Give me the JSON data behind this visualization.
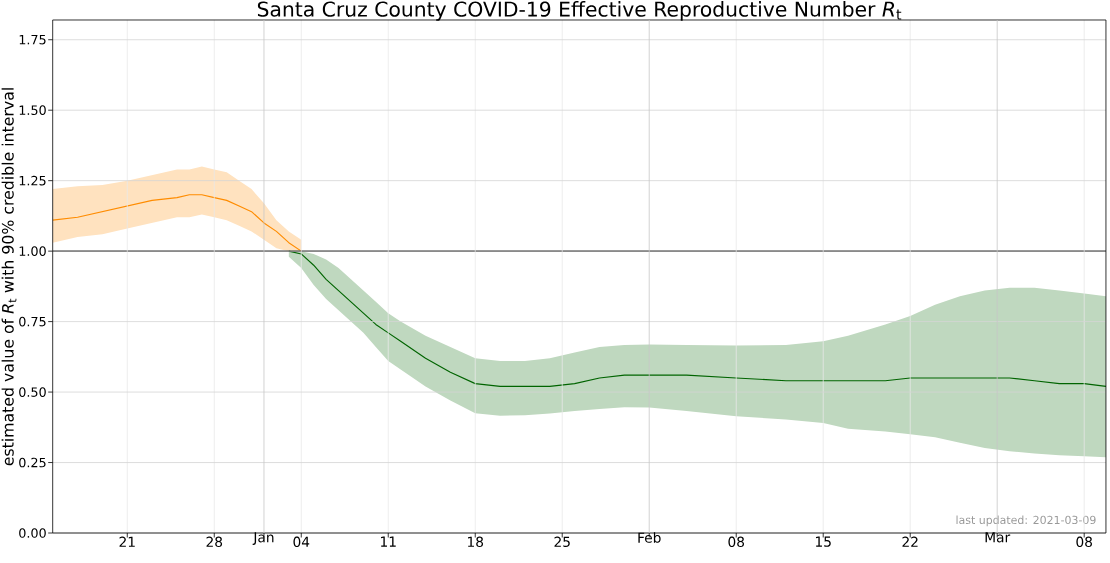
{
  "chart_data": {
    "type": "line",
    "title": "Santa Cruz County COVID-19 Effective Reproductive Number *R*$_{t}$",
    "ylabel": "estimated value of *R*$_{t}$ with 90% credible interval",
    "xlim": [
      "2020-12-15",
      "2021-03-09T18:00"
    ],
    "ylim": [
      0,
      1.82
    ],
    "xticks": [
      {
        "value": "2020-12-21",
        "label": "21"
      },
      {
        "value": "2020-12-28",
        "label": "28"
      },
      {
        "value": "2021-01-01",
        "label": "Jan"
      },
      {
        "value": "2021-01-04",
        "label": "04"
      },
      {
        "value": "2021-01-11",
        "label": "11"
      },
      {
        "value": "2021-01-18",
        "label": "18"
      },
      {
        "value": "2021-01-25",
        "label": "25"
      },
      {
        "value": "2021-02-01",
        "label": "Feb"
      },
      {
        "value": "2021-02-08",
        "label": "08"
      },
      {
        "value": "2021-02-15",
        "label": "15"
      },
      {
        "value": "2021-02-22",
        "label": "22"
      },
      {
        "value": "2021-03-01",
        "label": "Mar"
      },
      {
        "value": "2021-03-08",
        "label": "08"
      }
    ],
    "yticks": [
      {
        "value": 0,
        "label": "0.00"
      },
      {
        "value": 0.25,
        "label": "0.25"
      },
      {
        "value": 0.5,
        "label": "0.50"
      },
      {
        "value": 0.75,
        "label": "0.75"
      },
      {
        "value": 1,
        "label": "1.00"
      },
      {
        "value": 1.25,
        "label": "1.25"
      },
      {
        "value": 1.5,
        "label": "1.50"
      },
      {
        "value": 1.75,
        "label": "1.75"
      }
    ],
    "grid": true,
    "series": [
      {
        "color": "#ff8c00",
        "x": [
          "2020-12-15",
          "2020-12-17",
          "2020-12-19",
          "2020-12-21",
          "2020-12-23",
          "2020-12-25",
          "2020-12-26",
          "2020-12-27",
          "2020-12-28",
          "2020-12-29",
          "2020-12-30",
          "2020-12-31",
          "2021-01-01",
          "2021-01-02",
          "2021-01-03",
          "2021-01-04"
        ],
        "values": [
          1.11,
          1.12,
          1.14,
          1.16,
          1.18,
          1.19,
          1.2,
          1.2,
          1.19,
          1.18,
          1.16,
          1.14,
          1.1,
          1.07,
          1.03,
          1.0
        ],
        "upper": [
          1.22,
          1.23,
          1.235,
          1.25,
          1.27,
          1.29,
          1.29,
          1.3,
          1.29,
          1.28,
          1.25,
          1.22,
          1.17,
          1.11,
          1.07,
          1.04
        ],
        "lower": [
          1.03,
          1.05,
          1.06,
          1.08,
          1.1,
          1.12,
          1.12,
          1.13,
          1.12,
          1.11,
          1.09,
          1.07,
          1.04,
          1.01,
          1.0,
          1.0
        ]
      },
      {
        "color": "#006400",
        "x": [
          "2021-01-03",
          "2021-01-04",
          "2021-01-05",
          "2021-01-06",
          "2021-01-07",
          "2021-01-08",
          "2021-01-09",
          "2021-01-10",
          "2021-01-11",
          "2021-01-12",
          "2021-01-14",
          "2021-01-16",
          "2021-01-18",
          "2021-01-20",
          "2021-01-22",
          "2021-01-24",
          "2021-01-26",
          "2021-01-28",
          "2021-01-30",
          "2021-02-01",
          "2021-02-04",
          "2021-02-08",
          "2021-02-12",
          "2021-02-15",
          "2021-02-17",
          "2021-02-20",
          "2021-02-22",
          "2021-02-24",
          "2021-02-26",
          "2021-02-28",
          "2021-03-02",
          "2021-03-04",
          "2021-03-06",
          "2021-03-08",
          "2021-03-09T18:00"
        ],
        "values": [
          1.0,
          0.99,
          0.95,
          0.9,
          0.86,
          0.82,
          0.78,
          0.74,
          0.71,
          0.68,
          0.62,
          0.57,
          0.53,
          0.52,
          0.52,
          0.52,
          0.53,
          0.55,
          0.56,
          0.56,
          0.56,
          0.55,
          0.54,
          0.54,
          0.54,
          0.54,
          0.55,
          0.55,
          0.55,
          0.55,
          0.55,
          0.54,
          0.53,
          0.53,
          0.52
        ],
        "upper": [
          1.0,
          1.0,
          0.99,
          0.97,
          0.94,
          0.9,
          0.86,
          0.82,
          0.78,
          0.75,
          0.7,
          0.66,
          0.62,
          0.61,
          0.61,
          0.62,
          0.64,
          0.66,
          0.667,
          0.669,
          0.667,
          0.665,
          0.667,
          0.68,
          0.7,
          0.74,
          0.77,
          0.81,
          0.84,
          0.86,
          0.87,
          0.87,
          0.86,
          0.85,
          0.84
        ],
        "lower": [
          0.98,
          0.94,
          0.88,
          0.83,
          0.79,
          0.75,
          0.71,
          0.66,
          0.61,
          0.58,
          0.52,
          0.47,
          0.425,
          0.416,
          0.418,
          0.424,
          0.433,
          0.44,
          0.446,
          0.445,
          0.433,
          0.414,
          0.403,
          0.39,
          0.37,
          0.36,
          0.35,
          0.34,
          0.32,
          0.302,
          0.29,
          0.282,
          0.276,
          0.272,
          0.269
        ]
      }
    ],
    "ref_lines": [
      {
        "axis": "y",
        "value": 1.0,
        "color": "#000000"
      }
    ],
    "annotations": [
      "last updated: 2021-03-09"
    ]
  }
}
